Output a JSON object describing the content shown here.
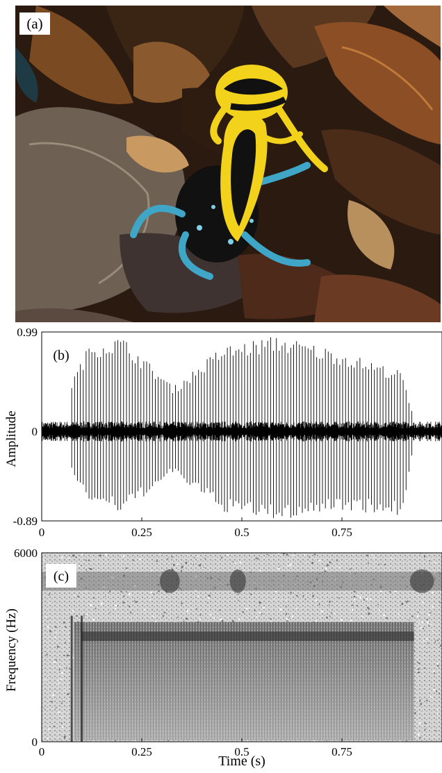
{
  "figure": {
    "panels": {
      "a": {
        "label": "(a)"
      },
      "b": {
        "label": "(b)"
      },
      "c": {
        "label": "(c)"
      }
    }
  },
  "colors": {
    "frog_yellow": "#f2d21a",
    "frog_black": "#111111",
    "frog_blue": "#3fa6c8",
    "leaf_brown": "#6b3a1e",
    "leaf_tan": "#b58a5a",
    "spectrogram_dark": "#222222"
  },
  "chart_data": [
    {
      "type": "line",
      "panel": "b",
      "title": "",
      "xlabel": "",
      "ylabel": "Amplitude",
      "xlim": [
        0,
        1.0
      ],
      "ylim": [
        -0.89,
        0.99
      ],
      "xticks": [
        "0",
        "0.25",
        "0.5",
        "0.75"
      ],
      "yticks": [
        "0.99",
        "0",
        "-0.89"
      ],
      "series": [
        {
          "description_points": [
            {
              "t": 0.0,
              "pos": 0.05,
              "neg": -0.05
            },
            {
              "t": 0.04,
              "pos": 0.22,
              "neg": -0.08
            },
            {
              "t": 0.08,
              "pos": 0.55,
              "neg": -0.45
            },
            {
              "t": 0.12,
              "pos": 0.88,
              "neg": -0.7
            },
            {
              "t": 0.2,
              "pos": 0.95,
              "neg": -0.82
            },
            {
              "t": 0.33,
              "pos": 0.45,
              "neg": -0.42
            },
            {
              "t": 0.45,
              "pos": 0.85,
              "neg": -0.8
            },
            {
              "t": 0.59,
              "pos": 0.96,
              "neg": -0.89
            },
            {
              "t": 0.75,
              "pos": 0.8,
              "neg": -0.78
            },
            {
              "t": 0.9,
              "pos": 0.6,
              "neg": -0.85
            },
            {
              "t": 0.93,
              "pos": 0.12,
              "neg": -0.12
            },
            {
              "t": 1.0,
              "pos": 0.1,
              "neg": -0.1
            }
          ]
        }
      ]
    },
    {
      "type": "heatmap",
      "panel": "c",
      "title": "",
      "xlabel": "Time (s)",
      "ylabel": "Frequency (Hz)",
      "xlim": [
        0,
        1.0
      ],
      "ylim": [
        0,
        6000
      ],
      "xticks": [
        "0",
        "0.25",
        "0.5",
        "0.75"
      ],
      "yticks": [
        "6000",
        "0"
      ],
      "call_band": {
        "t_start": 0.08,
        "t_end": 0.93,
        "f_low": 50,
        "f_high": 3800
      },
      "harmonic_band": {
        "f_low": 4800,
        "f_high": 5400
      }
    }
  ]
}
